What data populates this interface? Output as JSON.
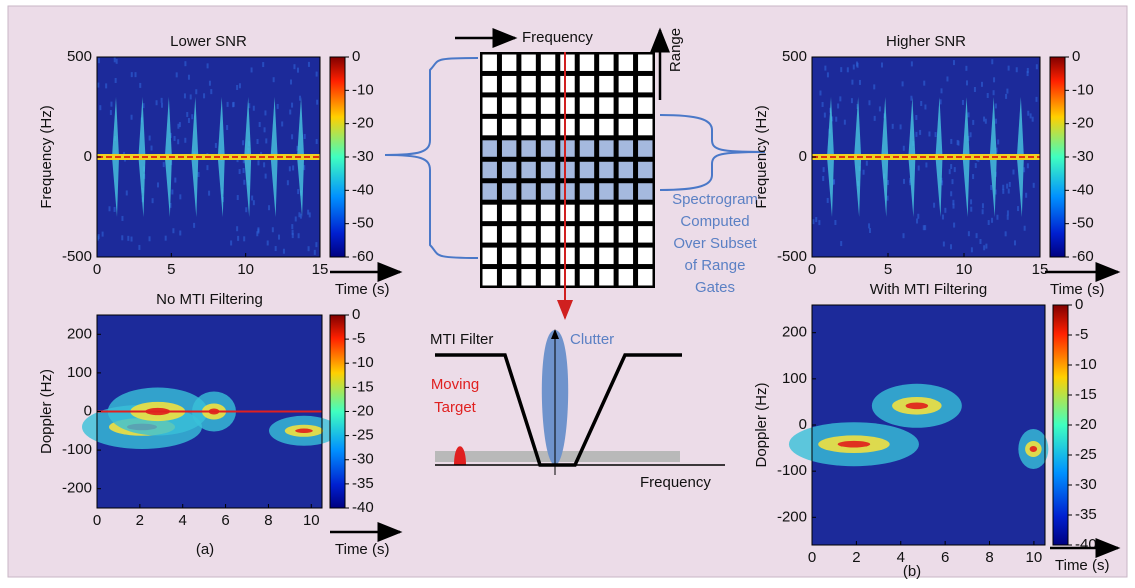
{
  "panels": [
    {
      "title": "Lower SNR",
      "ylabel": "Frequency (Hz)",
      "xlabel": "Time (s)",
      "xlim": [
        0,
        15
      ],
      "ylim": [
        -500,
        500
      ],
      "xticks": [
        0,
        5,
        10,
        15
      ],
      "yticks": [
        500,
        0,
        -500
      ],
      "clim": [
        -60,
        0
      ],
      "cticks": [
        0,
        -10,
        -20,
        -30,
        -40,
        -50,
        -60
      ]
    },
    {
      "title": "No MTI Filtering",
      "ylabel": "Doppler (Hz)",
      "xlabel": "Time (s)",
      "xlim": [
        0,
        10.5
      ],
      "ylim": [
        -250,
        250
      ],
      "xticks": [
        0,
        2,
        4,
        6,
        8,
        10
      ],
      "yticks": [
        200,
        100,
        0,
        -100,
        -200
      ],
      "clim": [
        -40,
        0
      ],
      "cticks": [
        0,
        -5,
        -10,
        -15,
        -20,
        -25,
        -30,
        -35,
        -40
      ]
    },
    {
      "title": "Higher SNR",
      "ylabel": "Frequency (Hz)",
      "xlabel": "Time (s)",
      "xlim": [
        0,
        15
      ],
      "ylim": [
        -500,
        500
      ],
      "xticks": [
        0,
        5,
        10,
        15
      ],
      "yticks": [
        500,
        0,
        -500
      ],
      "clim": [
        -60,
        0
      ],
      "cticks": [
        0,
        -10,
        -20,
        -30,
        -40,
        -50,
        -60
      ]
    },
    {
      "title": "With MTI Filtering",
      "ylabel": "Doppler (Hz)",
      "xlabel": "Time (s)",
      "xlim": [
        0,
        10.5
      ],
      "ylim": [
        -260,
        260
      ],
      "xticks": [
        0,
        2,
        4,
        6,
        8,
        10
      ],
      "yticks": [
        200,
        100,
        0,
        -100,
        -200
      ],
      "clim": [
        -40,
        0
      ],
      "cticks": [
        0,
        -5,
        -10,
        -15,
        -20,
        -25,
        -30,
        -35,
        -40
      ]
    }
  ],
  "captions": [
    "(a)",
    "(b)"
  ],
  "diagram": {
    "frequency_label": "Frequency",
    "range_label": "Range",
    "note_lines": [
      "Spectrogram",
      "Computed",
      "Over Subset",
      "of Range",
      "Gates"
    ]
  },
  "mti": {
    "filter_label": "MTI Filter",
    "clutter_label": "Clutter",
    "target_lines": [
      "Moving",
      "Target"
    ],
    "frequency_label": "Frequency"
  }
}
